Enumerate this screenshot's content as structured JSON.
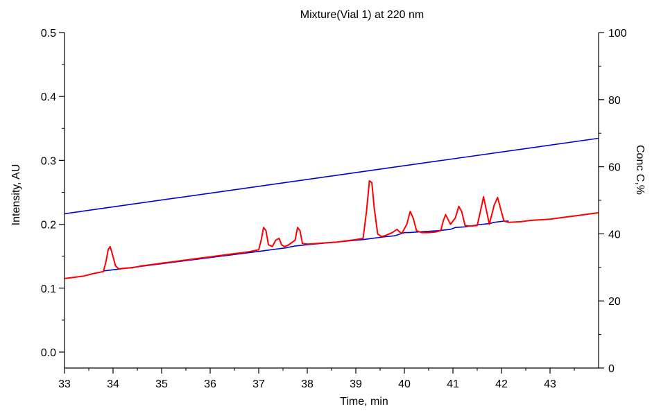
{
  "chart_data": {
    "type": "line",
    "title": "Mixture(Vial 1) at 220 nm",
    "xlabel": "Time, min",
    "ylabel": "Intensity, AU",
    "y2label": "Conc C,%",
    "xlim": [
      33,
      44
    ],
    "ylim": [
      -0.025,
      0.5
    ],
    "y2lim": [
      0,
      100
    ],
    "xticks": [
      "33",
      "34",
      "35",
      "36",
      "37",
      "38",
      "39",
      "40",
      "41",
      "42",
      "43"
    ],
    "yticks": [
      "0.0",
      "0.1",
      "0.2",
      "0.3",
      "0.4",
      "0.5"
    ],
    "y2ticks": [
      "0",
      "20",
      "40",
      "60",
      "80",
      "100"
    ],
    "grid": false,
    "colors": {
      "signal": "#ff0000",
      "baseline": "#0000cc",
      "gradient": "#0000cc",
      "axis": "#000000"
    },
    "series": [
      {
        "axis": "right",
        "x": [
          33,
          44
        ],
        "y": [
          46,
          68.5
        ]
      },
      {
        "axis": "left",
        "x": [
          33.8,
          34.25,
          37.05,
          37.35,
          37.55,
          37.75,
          38.0,
          39.15,
          39.55,
          39.8,
          40.0,
          40.1,
          40.3,
          40.7,
          40.95,
          41.05,
          41.25,
          41.5,
          41.75,
          41.85,
          42.05,
          42.15
        ],
        "y": [
          0.127,
          0.131,
          0.158,
          0.161,
          0.163,
          0.166,
          0.168,
          0.176,
          0.18,
          0.182,
          0.187,
          0.187,
          0.188,
          0.19,
          0.192,
          0.195,
          0.196,
          0.199,
          0.201,
          0.203,
          0.205,
          0.205
        ]
      },
      {
        "axis": "left",
        "x": [
          33.0,
          33.2,
          33.4,
          33.6,
          33.8,
          33.85,
          33.9,
          33.94,
          33.98,
          34.05,
          34.12,
          34.2,
          34.4,
          34.6,
          34.8,
          35.0,
          35.2,
          35.4,
          35.6,
          35.8,
          36.0,
          36.2,
          36.4,
          36.6,
          36.8,
          37.0,
          37.05,
          37.1,
          37.15,
          37.2,
          37.28,
          37.35,
          37.42,
          37.47,
          37.53,
          37.6,
          37.75,
          37.8,
          37.85,
          37.9,
          38.0,
          38.2,
          38.4,
          38.6,
          38.8,
          39.0,
          39.15,
          39.22,
          39.28,
          39.33,
          39.38,
          39.45,
          39.52,
          39.6,
          39.75,
          39.85,
          39.9,
          39.95,
          40.05,
          40.12,
          40.18,
          40.25,
          40.35,
          40.5,
          40.65,
          40.75,
          40.8,
          40.85,
          40.95,
          41.05,
          41.12,
          41.18,
          41.25,
          41.35,
          41.5,
          41.58,
          41.63,
          41.68,
          41.75,
          41.85,
          41.92,
          41.98,
          42.05,
          42.15,
          42.4,
          42.6,
          42.8,
          43.0,
          43.2,
          43.4,
          43.6,
          43.8,
          44.0
        ],
        "y": [
          0.115,
          0.117,
          0.119,
          0.123,
          0.126,
          0.14,
          0.16,
          0.165,
          0.155,
          0.135,
          0.13,
          0.131,
          0.132,
          0.135,
          0.137,
          0.139,
          0.141,
          0.143,
          0.145,
          0.147,
          0.149,
          0.151,
          0.153,
          0.155,
          0.157,
          0.16,
          0.175,
          0.195,
          0.19,
          0.168,
          0.165,
          0.175,
          0.178,
          0.168,
          0.165,
          0.167,
          0.175,
          0.195,
          0.19,
          0.17,
          0.169,
          0.17,
          0.171,
          0.172,
          0.174,
          0.176,
          0.178,
          0.22,
          0.268,
          0.265,
          0.225,
          0.185,
          0.181,
          0.182,
          0.187,
          0.192,
          0.188,
          0.186,
          0.2,
          0.22,
          0.21,
          0.19,
          0.187,
          0.187,
          0.188,
          0.19,
          0.205,
          0.215,
          0.2,
          0.21,
          0.228,
          0.22,
          0.198,
          0.197,
          0.198,
          0.225,
          0.243,
          0.225,
          0.2,
          0.23,
          0.242,
          0.225,
          0.205,
          0.203,
          0.204,
          0.206,
          0.207,
          0.208,
          0.21,
          0.212,
          0.214,
          0.216,
          0.218
        ]
      }
    ]
  }
}
